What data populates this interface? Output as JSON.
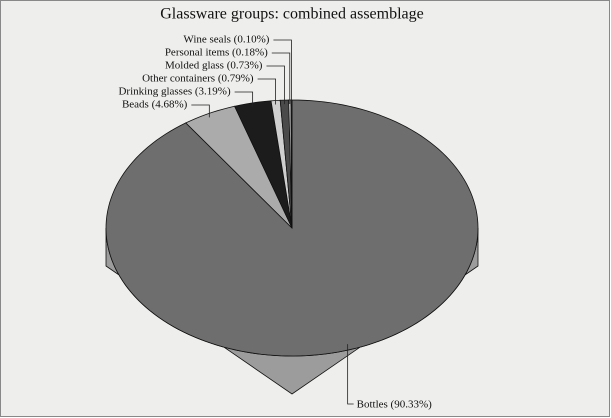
{
  "chart_data": {
    "type": "pie",
    "title": "Glassware groups: combined assemblage",
    "categories": [
      "Bottles (90.33%)",
      "Beads (4.68%)",
      "Drinking glasses (3.19%)",
      "Other containers (0.79%)",
      "Molded glass (0.73%)",
      "Personal items (0.18%)",
      "Wine seals (0.10%)"
    ],
    "values": [
      90.33,
      4.68,
      3.19,
      0.79,
      0.73,
      0.18,
      0.1
    ],
    "colors": [
      "#6e6e6e",
      "#ababab",
      "#1c1c1c",
      "#cfcfcf",
      "#4a4a4a",
      "#ececec",
      "#262626"
    ]
  }
}
